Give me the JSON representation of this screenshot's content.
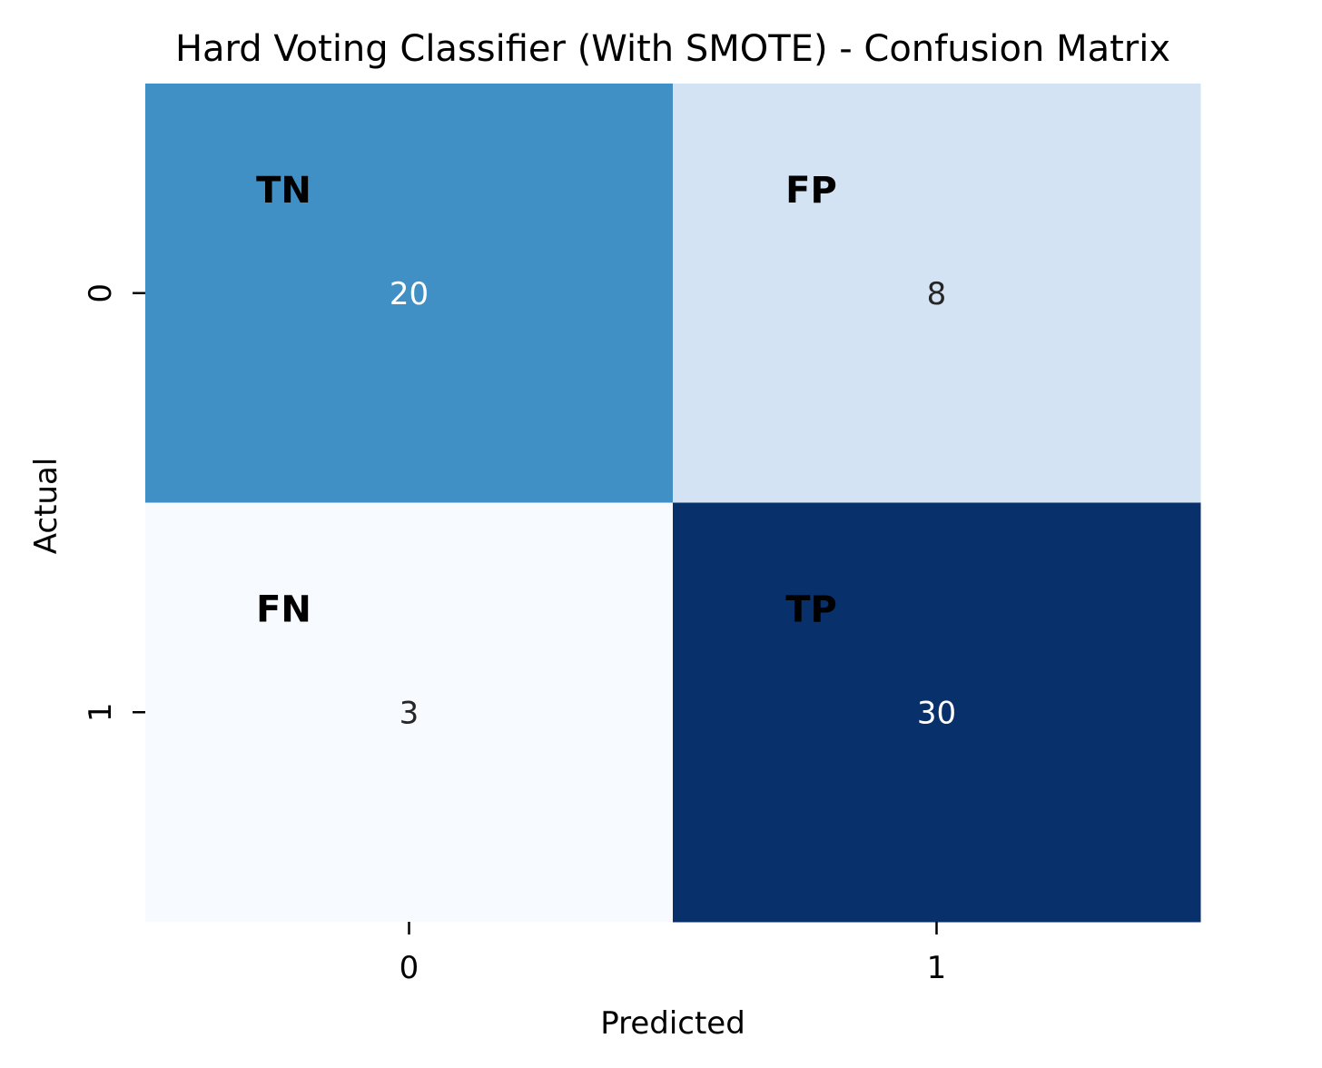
{
  "chart_data": {
    "type": "heatmap",
    "title": "Hard Voting Classifier (With SMOTE) - Confusion Matrix",
    "xlabel": "Predicted",
    "ylabel": "Actual",
    "x_categories": [
      "0",
      "1"
    ],
    "y_categories": [
      "0",
      "1"
    ],
    "values": [
      [
        20,
        8
      ],
      [
        3,
        30
      ]
    ],
    "cell_tags": [
      [
        "TN",
        "FP"
      ],
      [
        "FN",
        "TP"
      ]
    ],
    "colormap": "Blues",
    "colorbar": false,
    "cell_colors": [
      [
        "#4090c5",
        "#d3e3f3"
      ],
      [
        "#f7fbff",
        "#08306b"
      ]
    ],
    "value_text_colors": [
      [
        "#ffffff",
        "#262626"
      ],
      [
        "#262626",
        "#ffffff"
      ]
    ]
  }
}
